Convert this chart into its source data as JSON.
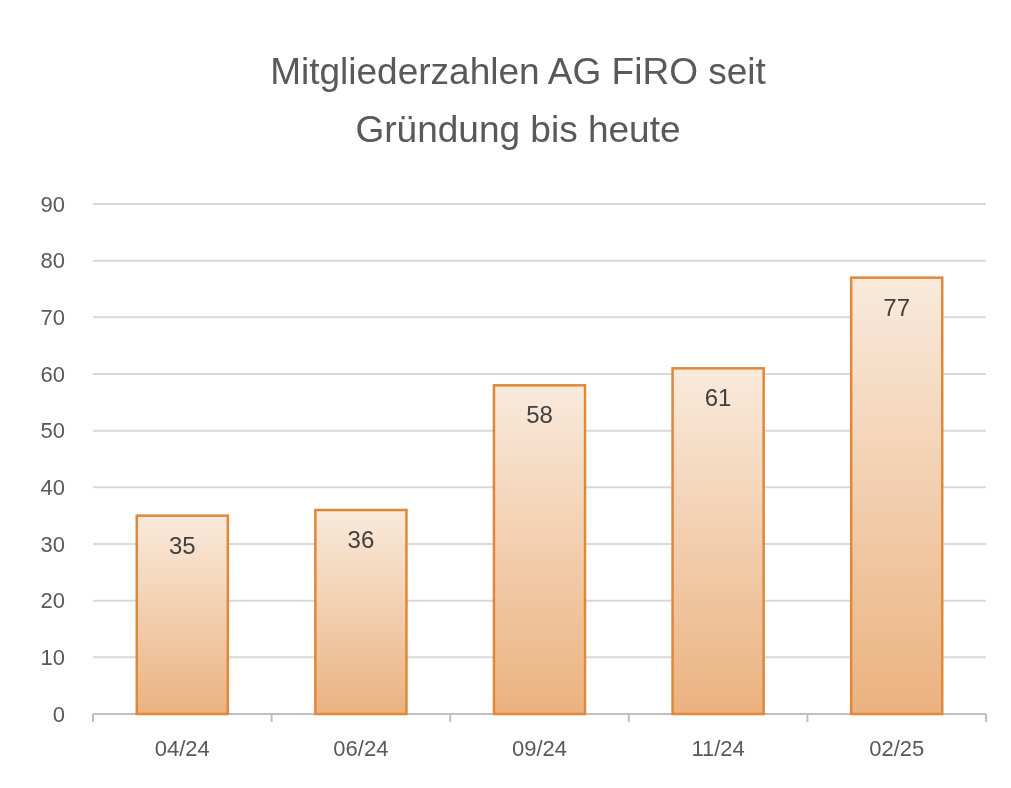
{
  "chart_data": {
    "type": "bar",
    "title": "Mitgliederzahlen AG FiRO seit Gründung bis heute",
    "categories": [
      "04/24",
      "06/24",
      "09/24",
      "11/24",
      "02/25"
    ],
    "values": [
      35,
      36,
      58,
      61,
      77
    ],
    "color": "#e0883a",
    "ylim": [
      0,
      90
    ],
    "yticks": [
      0,
      10,
      20,
      30,
      40,
      50,
      60,
      70,
      80,
      90
    ],
    "grid": "y",
    "data_labels": true
  }
}
